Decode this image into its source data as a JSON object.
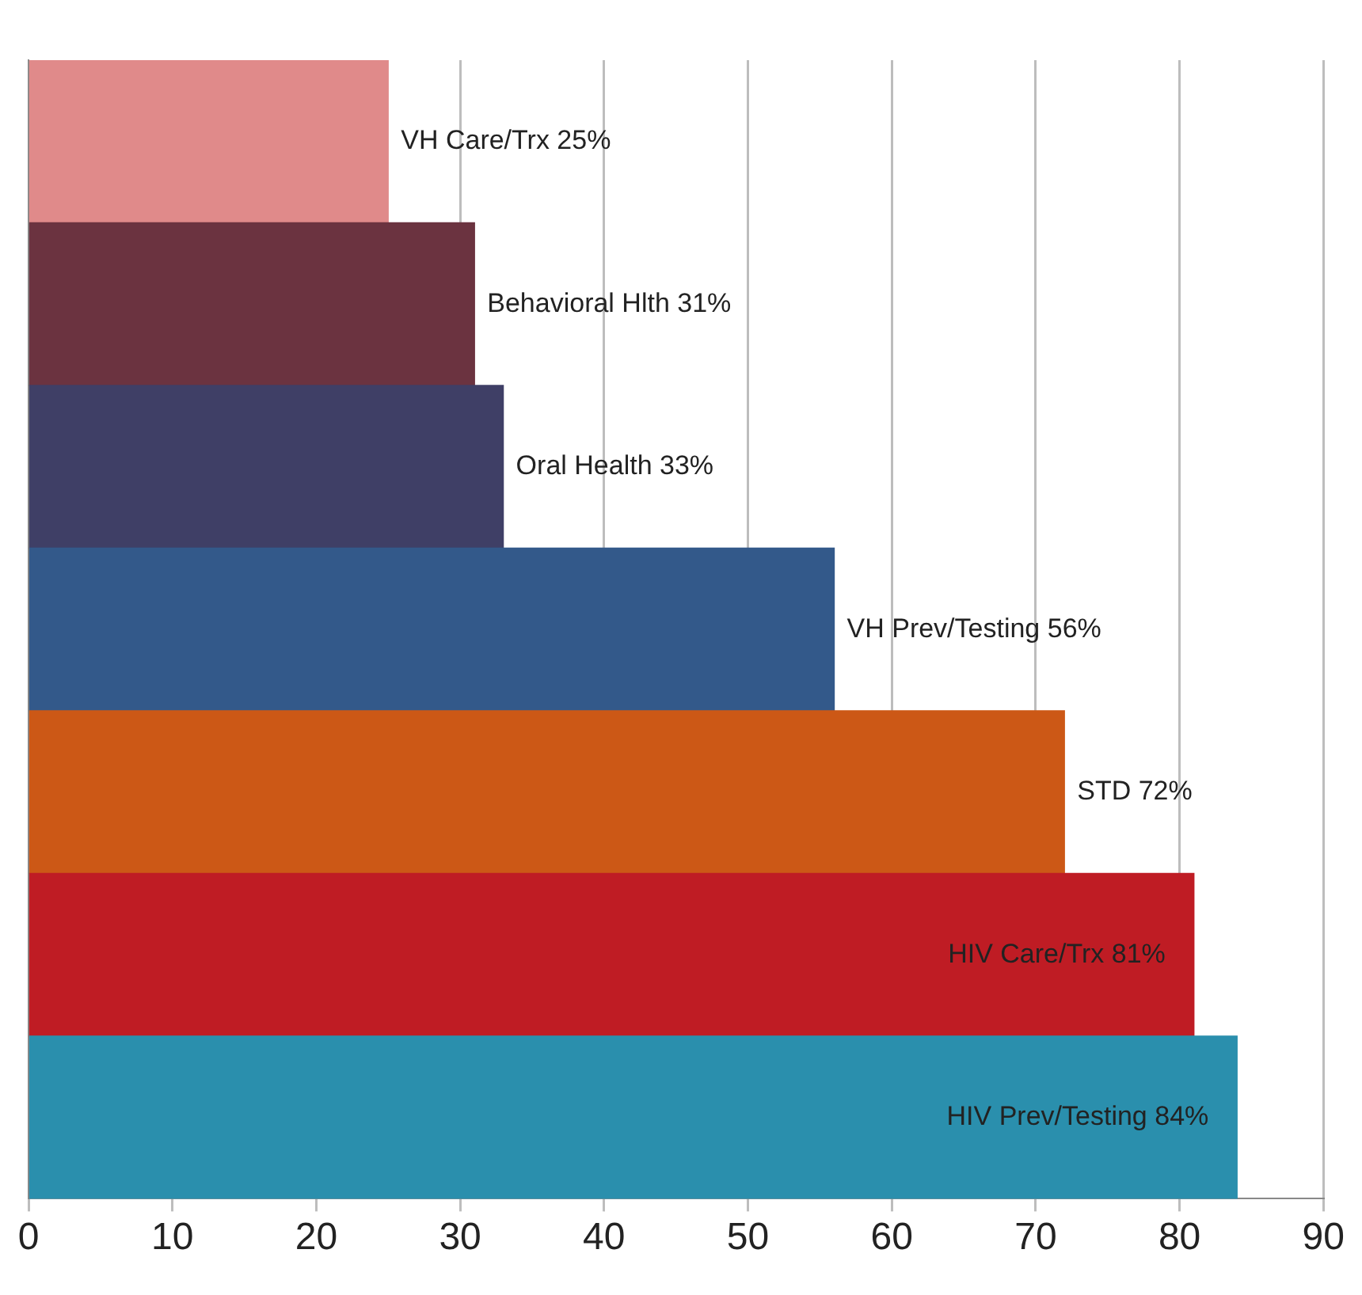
{
  "chart_data": {
    "type": "bar",
    "orientation": "horizontal",
    "categories": [
      "VH Care/Trx",
      "Behavioral Hlth",
      "Oral Health",
      "VH Prev/Testing",
      "STD",
      "HIV Care/Trx",
      "HIV Prev/Testing"
    ],
    "values": [
      25,
      31,
      33,
      56,
      72,
      81,
      84
    ],
    "colors": [
      "#e08a8a",
      "#6b3340",
      "#3f3f66",
      "#33598a",
      "#cc5816",
      "#bf1c24",
      "#2a8fad"
    ],
    "value_labels": [
      "25%",
      "31%",
      "33%",
      "56%",
      "72%",
      "81%",
      "84%"
    ],
    "xlim": [
      0,
      90
    ],
    "xticks": [
      0,
      10,
      20,
      30,
      40,
      50,
      60,
      70,
      80,
      90
    ],
    "grid": "x",
    "tick_labels": "x",
    "legend": false
  }
}
